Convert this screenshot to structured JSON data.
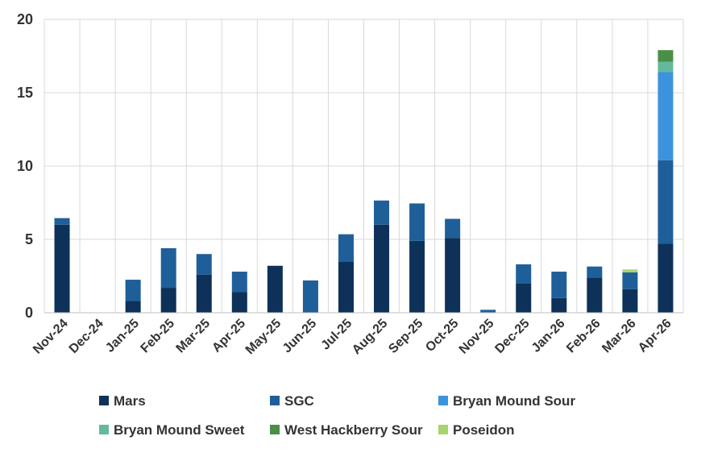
{
  "chart_data": {
    "type": "bar",
    "stacked": true,
    "categories": [
      "Nov-24",
      "Dec-24",
      "Jan-25",
      "Feb-25",
      "Mar-25",
      "Apr-25",
      "May-25",
      "Jun-25",
      "Jul-25",
      "Aug-25",
      "Sep-25",
      "Oct-25",
      "Nov-25",
      "Dec-25",
      "Jan-26",
      "Feb-26",
      "Mar-26",
      "Apr-26"
    ],
    "ylim": [
      0,
      20
    ],
    "yticks": [
      0,
      5,
      10,
      15,
      20
    ],
    "grid": true,
    "legend_position": "bottom",
    "series": [
      {
        "name": "Mars",
        "color": "#0d3158",
        "values": [
          6.0,
          0,
          0.8,
          1.7,
          2.6,
          1.4,
          3.2,
          0,
          3.5,
          6.0,
          4.9,
          5.1,
          0,
          2.0,
          1.0,
          2.4,
          1.6,
          4.7
        ]
      },
      {
        "name": "SGC",
        "color": "#1f5f99",
        "values": [
          0.45,
          0,
          1.45,
          2.7,
          1.4,
          1.4,
          0,
          2.2,
          1.85,
          1.65,
          2.55,
          1.3,
          0.2,
          1.3,
          1.8,
          0.75,
          1.15,
          5.7
        ]
      },
      {
        "name": "Bryan Mound Sour",
        "color": "#3b93dd",
        "values": [
          0,
          0,
          0,
          0,
          0,
          0,
          0,
          0,
          0,
          0,
          0,
          0,
          0,
          0,
          0,
          0,
          0,
          6.0
        ]
      },
      {
        "name": "Bryan Mound Sweet",
        "color": "#64b89e",
        "values": [
          0,
          0,
          0,
          0,
          0,
          0,
          0,
          0,
          0,
          0,
          0,
          0,
          0,
          0,
          0,
          0,
          0,
          0.7
        ]
      },
      {
        "name": "West Hackberry Sour",
        "color": "#4a8f46",
        "values": [
          0,
          0,
          0,
          0,
          0,
          0,
          0,
          0,
          0,
          0,
          0,
          0,
          0,
          0,
          0,
          0,
          0,
          0.8
        ]
      },
      {
        "name": "Poseidon",
        "color": "#a8d46f",
        "values": [
          0,
          0,
          0,
          0,
          0,
          0,
          0,
          0,
          0,
          0,
          0,
          0,
          0,
          0,
          0,
          0,
          0.2,
          0
        ]
      }
    ]
  }
}
